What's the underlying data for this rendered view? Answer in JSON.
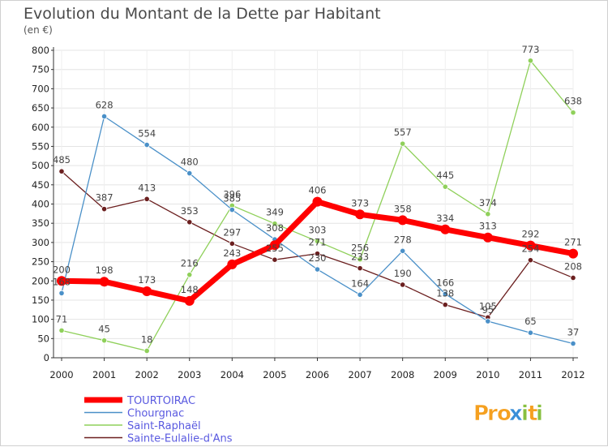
{
  "chart_data": {
    "type": "line",
    "title": "Evolution du Montant de la Dette par Habitant",
    "subtitle": "(en €)",
    "xlabel": "",
    "ylabel": "",
    "x": [
      "2000",
      "2001",
      "2002",
      "2003",
      "2004",
      "2005",
      "2006",
      "2007",
      "2008",
      "2009",
      "2010",
      "2011",
      "2012"
    ],
    "ylim": [
      0,
      800
    ],
    "yticks": [
      0,
      50,
      100,
      150,
      200,
      250,
      300,
      350,
      400,
      450,
      500,
      550,
      600,
      650,
      700,
      750,
      800
    ],
    "grid": true,
    "legend_position": "bottom-left",
    "series": [
      {
        "name": "TOURTOIRAC",
        "color": "#ff0000",
        "values": [
          200,
          198,
          173,
          148,
          243,
          293,
          406,
          373,
          358,
          334,
          313,
          292,
          271
        ],
        "labels": [
          "200",
          "198",
          "173",
          "148",
          "243",
          "",
          "406",
          "373",
          "358",
          "334",
          "313",
          "292",
          "271"
        ]
      },
      {
        "name": "Chourgnac",
        "color": "#4a90c8",
        "values": [
          168,
          628,
          554,
          480,
          385,
          308,
          230,
          164,
          278,
          166,
          95,
          65,
          37
        ],
        "labels": [
          "168",
          "628",
          "554",
          "480",
          "385",
          "308",
          "230",
          "164",
          "278",
          "166",
          "95",
          "65",
          "37"
        ]
      },
      {
        "name": "Saint-Raphaël",
        "color": "#8fd05a",
        "values": [
          71,
          45,
          18,
          216,
          396,
          349,
          303,
          256,
          557,
          445,
          374,
          773,
          638
        ],
        "labels": [
          "71",
          "45",
          "18",
          "216",
          "396",
          "349",
          "303",
          "256",
          "557",
          "445",
          "374",
          "773",
          "638"
        ]
      },
      {
        "name": "Sainte-Eulalie-d'Ans",
        "color": "#6b1f1f",
        "values": [
          485,
          387,
          413,
          353,
          297,
          255,
          271,
          233,
          190,
          138,
          105,
          254,
          208
        ],
        "labels": [
          "485",
          "387",
          "413",
          "353",
          "297",
          "255",
          "271",
          "233",
          "190",
          "138",
          "105",
          "254",
          "208"
        ]
      }
    ]
  },
  "brand": {
    "logo_text": "Proxiti",
    "logo_letters": [
      "P",
      "r",
      "o",
      "x",
      "i",
      "t",
      "i"
    ],
    "logo_colors": [
      "#f5a020",
      "#f5a020",
      "#f5a020",
      "#3a8fd8",
      "#88c040",
      "#f5a020",
      "#88c040"
    ]
  }
}
